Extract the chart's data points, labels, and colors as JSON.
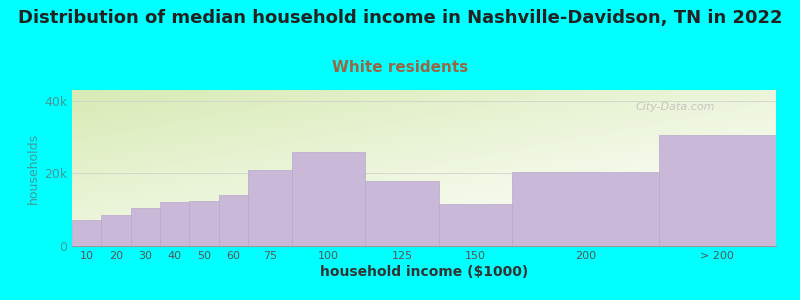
{
  "title": "Distribution of median household income in Nashville-Davidson, TN in 2022",
  "subtitle": "White residents",
  "xlabel": "household income ($1000)",
  "ylabel": "households",
  "background_color": "#00FFFF",
  "plot_bg_top_left": "#d8ebb5",
  "plot_bg_bottom_right": "#ffffff",
  "bar_color": "#c9b8d8",
  "bar_edge_color": "#b8a8c8",
  "categories": [
    "10",
    "20",
    "30",
    "40",
    "50",
    "60",
    "75",
    "100",
    "125",
    "150",
    "200",
    "> 200"
  ],
  "values": [
    7200,
    8500,
    10500,
    12000,
    12500,
    14000,
    21000,
    26000,
    18000,
    11500,
    20500,
    30500
  ],
  "left_edges": [
    0,
    10,
    20,
    30,
    40,
    50,
    60,
    75,
    100,
    125,
    150,
    200
  ],
  "right_edges": [
    10,
    20,
    30,
    40,
    50,
    60,
    75,
    100,
    125,
    150,
    200,
    240
  ],
  "ylim": [
    0,
    43000
  ],
  "yticks": [
    0,
    20000,
    40000
  ],
  "ytick_labels": [
    "0",
    "20k",
    "40k"
  ],
  "xlim": [
    0,
    240
  ],
  "title_fontsize": 13,
  "subtitle_fontsize": 11,
  "subtitle_color": "#996644",
  "watermark": "City-Data.com",
  "title_color": "#222222",
  "ylabel_color": "#449999",
  "xlabel_color": "#555555",
  "tick_label_color": "#555555"
}
